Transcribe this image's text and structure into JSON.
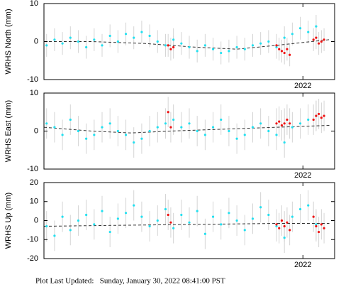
{
  "chart_data": [
    {
      "type": "scatter",
      "ylabel": "WRHS North (mm)",
      "xlim": [
        2021.02,
        2022.12
      ],
      "xticks": [
        2022
      ],
      "ylim": [
        -10,
        10
      ],
      "yticks": [
        -10,
        0,
        10
      ],
      "grid": false,
      "trend": {
        "color": "#333333",
        "x": [
          2021.02,
          2021.2,
          2021.4,
          2021.6,
          2021.75,
          2021.9,
          2022.1
        ],
        "values": [
          0,
          0,
          -0.5,
          -1.5,
          -2,
          -1,
          0.5
        ]
      },
      "series": [
        {
          "color": "#22e0f0",
          "error": 3,
          "x": [
            2021.03,
            2021.06,
            2021.09,
            2021.12,
            2021.15,
            2021.18,
            2021.21,
            2021.24,
            2021.27,
            2021.3,
            2021.33,
            2021.36,
            2021.39,
            2021.42,
            2021.45,
            2021.48,
            2021.51,
            2021.54,
            2021.57,
            2021.6,
            2021.63,
            2021.66,
            2021.69,
            2021.72,
            2021.75,
            2021.78,
            2021.81,
            2021.84,
            2021.87,
            2021.9,
            2021.93,
            2021.96,
            2021.99,
            2022.02,
            2022.05
          ],
          "values": [
            -1,
            0.5,
            -0.5,
            1,
            0,
            -1.5,
            0.5,
            -1,
            1.5,
            0,
            2,
            1,
            2.5,
            1.5,
            0,
            -1,
            0.5,
            -0.5,
            -1.5,
            -2.5,
            -1,
            -2,
            -3,
            -2.5,
            -1.5,
            -2,
            -1,
            -0.5,
            0,
            -1.5,
            1,
            2,
            3.5,
            2.5,
            4
          ]
        },
        {
          "color": "#ee1111",
          "error": 3,
          "x": [
            2021.49,
            2021.5,
            2021.51,
            2021.9,
            2021.91,
            2021.92,
            2021.93,
            2021.94,
            2021.95,
            2022.04,
            2022.05,
            2022.06,
            2022.07,
            2022.08
          ],
          "values": [
            -1,
            -2,
            -1.5,
            -1,
            -2,
            -2.5,
            -3,
            -2,
            -3.5,
            0.5,
            1,
            -0.5,
            0,
            0.5
          ]
        }
      ]
    },
    {
      "type": "scatter",
      "ylabel": "WRHS East (mm)",
      "xlim": [
        2021.02,
        2022.12
      ],
      "xticks": [
        2022
      ],
      "ylim": [
        -10,
        10
      ],
      "yticks": [
        -10,
        0,
        10
      ],
      "grid": false,
      "trend": {
        "color": "#333333",
        "x": [
          2021.02,
          2021.2,
          2021.35,
          2021.5,
          2021.7,
          2021.9,
          2022.1
        ],
        "values": [
          1,
          0,
          -0.5,
          0,
          0.5,
          1,
          1.5
        ]
      },
      "series": [
        {
          "color": "#22e0f0",
          "error": 4,
          "x": [
            2021.03,
            2021.06,
            2021.09,
            2021.12,
            2021.15,
            2021.18,
            2021.21,
            2021.24,
            2021.27,
            2021.3,
            2021.33,
            2021.36,
            2021.39,
            2021.42,
            2021.45,
            2021.48,
            2021.51,
            2021.54,
            2021.57,
            2021.6,
            2021.63,
            2021.66,
            2021.69,
            2021.72,
            2021.75,
            2021.78,
            2021.81,
            2021.84,
            2021.87,
            2021.9,
            2021.93,
            2021.96,
            2021.99,
            2022.02,
            2022.05
          ],
          "values": [
            2,
            1,
            -1,
            3,
            0,
            -2,
            -1,
            1,
            2,
            0,
            -1,
            -3,
            -2,
            0,
            1,
            2,
            3,
            1,
            2,
            0,
            -1,
            1,
            3,
            0,
            -2,
            -1,
            1,
            2,
            0,
            -1,
            -3,
            1,
            2,
            3,
            4
          ]
        },
        {
          "color": "#ee1111",
          "error": 4,
          "x": [
            2021.49,
            2021.5,
            2021.9,
            2021.91,
            2021.92,
            2021.93,
            2021.94,
            2021.95,
            2022.04,
            2022.05,
            2022.06,
            2022.07,
            2022.08
          ],
          "values": [
            5,
            1,
            2,
            2.5,
            1.5,
            2,
            3,
            2,
            3,
            4,
            4.5,
            3.5,
            4
          ]
        }
      ]
    },
    {
      "type": "scatter",
      "ylabel": "WRHS Up (mm)",
      "xlim": [
        2021.02,
        2022.12
      ],
      "xticks": [
        2022
      ],
      "ylim": [
        -20,
        20
      ],
      "yticks": [
        -20,
        -10,
        0,
        10,
        20
      ],
      "grid": false,
      "trend": {
        "color": "#333333",
        "x": [
          2021.02,
          2021.3,
          2021.6,
          2021.9,
          2022.1
        ],
        "values": [
          -3,
          -2.5,
          -2,
          -1.5,
          -1.5
        ]
      },
      "series": [
        {
          "color": "#22e0f0",
          "error": 8,
          "x": [
            2021.03,
            2021.06,
            2021.09,
            2021.12,
            2021.15,
            2021.18,
            2021.21,
            2021.24,
            2021.27,
            2021.3,
            2021.33,
            2021.36,
            2021.39,
            2021.42,
            2021.45,
            2021.48,
            2021.51,
            2021.54,
            2021.57,
            2021.6,
            2021.63,
            2021.66,
            2021.69,
            2021.72,
            2021.75,
            2021.78,
            2021.81,
            2021.84,
            2021.87,
            2021.9,
            2021.93,
            2021.96,
            2021.99,
            2022.02,
            2022.05
          ],
          "values": [
            -3,
            -8,
            2,
            -5,
            0,
            3,
            -2,
            5,
            -6,
            1,
            4,
            8,
            2,
            -3,
            0,
            6,
            -4,
            3,
            -1,
            5,
            -7,
            2,
            -2,
            4,
            0,
            -5,
            1,
            7,
            3,
            -3,
            -9,
            2,
            6,
            8,
            -2
          ]
        },
        {
          "color": "#ee1111",
          "error": 8,
          "x": [
            2021.49,
            2021.5,
            2021.9,
            2021.91,
            2021.92,
            2021.93,
            2021.94,
            2021.95,
            2022.04,
            2022.05,
            2022.06,
            2022.07,
            2022.08
          ],
          "values": [
            3,
            -1,
            -2,
            -4,
            0,
            -3,
            -1,
            -5,
            2,
            -3,
            -6,
            -2,
            -4
          ]
        }
      ]
    }
  ],
  "footer": "Plot Last Updated:   Sunday, January 30, 2022 08:41:00 PST"
}
